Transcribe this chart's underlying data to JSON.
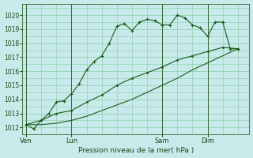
{
  "title": "Pression niveau de la mer( hPa )",
  "background_color": "#c8eaea",
  "grid_color": "#88ccaa",
  "line_color": "#1a5c1a",
  "ylim": [
    1011.5,
    1020.8
  ],
  "yticks": [
    1012,
    1013,
    1014,
    1015,
    1016,
    1017,
    1018,
    1019,
    1020
  ],
  "xtick_labels": [
    "Ven",
    "Lun",
    "Sam",
    "Dim"
  ],
  "xtick_positions": [
    0,
    24,
    72,
    96
  ],
  "vlines": [
    0,
    24,
    72,
    96
  ],
  "xlim": [
    -2,
    118
  ],
  "series1_x": [
    0,
    4,
    8,
    12,
    16,
    20,
    24,
    28,
    32,
    36,
    40,
    44,
    48,
    52,
    56,
    60,
    64,
    68,
    72,
    76,
    80,
    84,
    88,
    92,
    96,
    100,
    104,
    108,
    112
  ],
  "series1_y": [
    1012.2,
    1011.9,
    1012.5,
    1013.0,
    1013.8,
    1013.9,
    1014.4,
    1015.1,
    1016.1,
    1016.7,
    1017.1,
    1018.0,
    1019.2,
    1019.4,
    1018.9,
    1019.5,
    1019.7,
    1019.6,
    1019.3,
    1019.3,
    1020.0,
    1019.8,
    1019.3,
    1019.1,
    1018.5,
    1019.5,
    1019.5,
    1017.6,
    1017.6
  ],
  "series2_x": [
    0,
    8,
    16,
    24,
    32,
    40,
    48,
    56,
    64,
    72,
    80,
    88,
    96,
    104,
    112
  ],
  "series2_y": [
    1012.2,
    1012.5,
    1013.0,
    1013.2,
    1013.8,
    1014.3,
    1015.0,
    1015.5,
    1015.9,
    1016.3,
    1016.8,
    1017.1,
    1017.4,
    1017.7,
    1017.6
  ],
  "series3_x": [
    0,
    8,
    16,
    24,
    32,
    40,
    48,
    56,
    64,
    72,
    80,
    88,
    96,
    104,
    112
  ],
  "series3_y": [
    1012.2,
    1012.2,
    1012.3,
    1012.5,
    1012.8,
    1013.2,
    1013.6,
    1014.0,
    1014.5,
    1015.0,
    1015.5,
    1016.1,
    1016.6,
    1017.1,
    1017.6
  ],
  "ytick_fontsize": 5.5,
  "xtick_fontsize": 6.0,
  "xlabel_fontsize": 6.5
}
